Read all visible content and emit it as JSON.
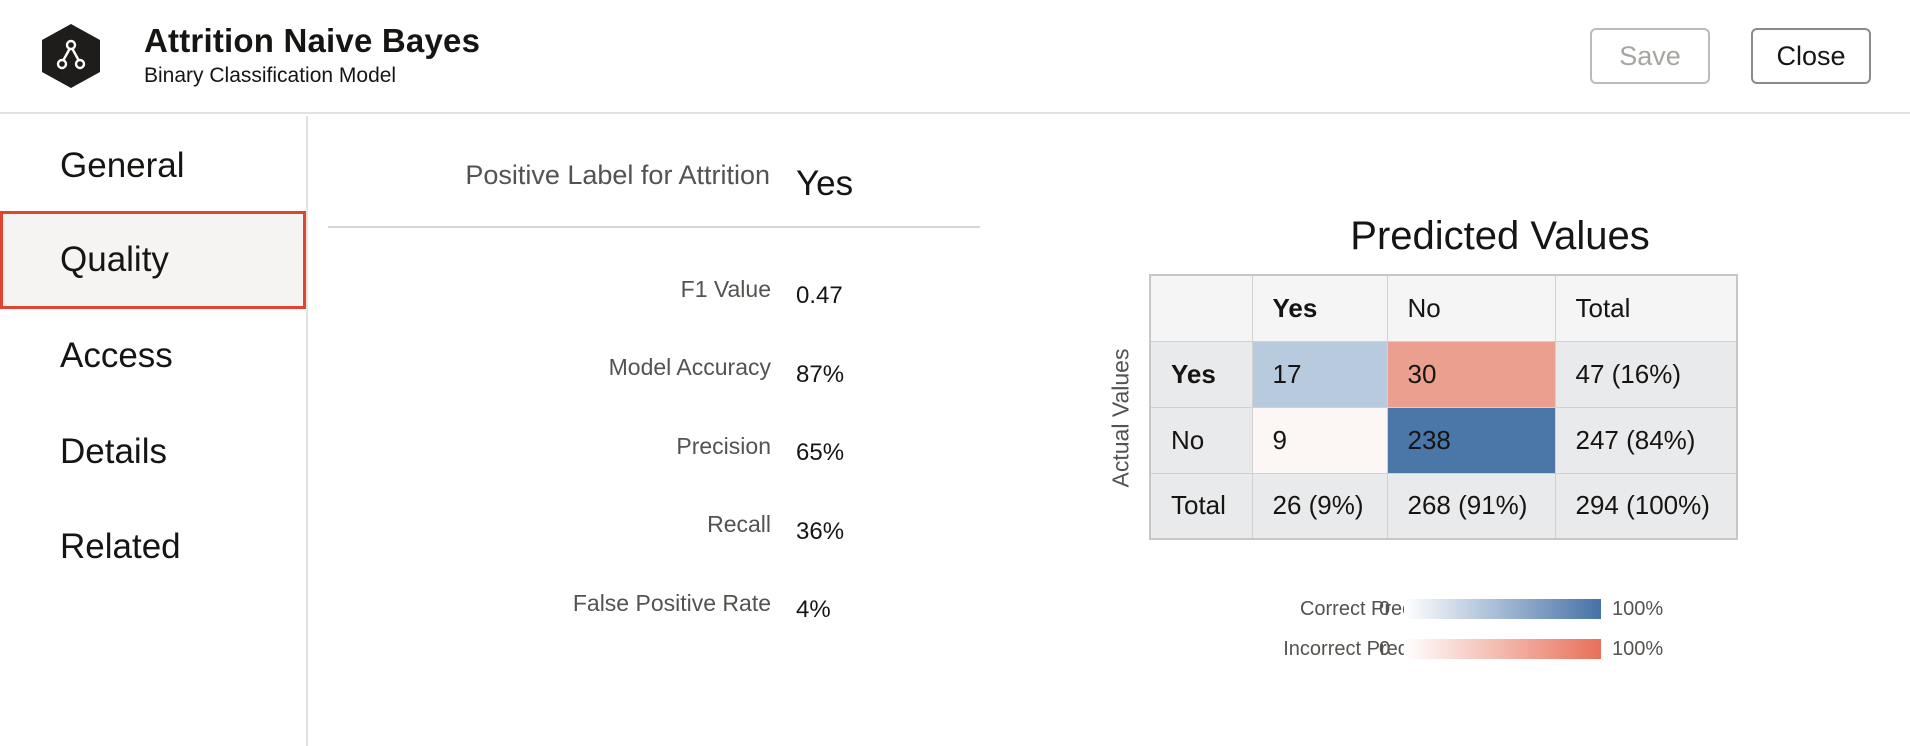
{
  "header": {
    "title": "Attrition Naive Bayes",
    "subtitle": "Binary Classification Model",
    "logo_icon": "model-hexagon-icon",
    "save_label": "Save",
    "close_label": "Close"
  },
  "sidebar": {
    "items": [
      {
        "label": "General",
        "active": false
      },
      {
        "label": "Quality",
        "active": true
      },
      {
        "label": "Access",
        "active": false
      },
      {
        "label": "Details",
        "active": false
      },
      {
        "label": "Related",
        "active": false
      }
    ]
  },
  "quality": {
    "positive_label_caption": "Positive Label for Attrition",
    "positive_label_value": "Yes",
    "metrics": [
      {
        "label": "F1 Value",
        "value": "0.47"
      },
      {
        "label": "Model Accuracy",
        "value": "87%"
      },
      {
        "label": "Precision",
        "value": "65%"
      },
      {
        "label": "Recall",
        "value": "36%"
      },
      {
        "label": "False Positive Rate",
        "value": "4%"
      }
    ]
  },
  "confusion_matrix": {
    "title": "Predicted Values",
    "row_axis_label": "Actual Values",
    "columns": [
      "Yes",
      "No",
      "Total"
    ],
    "rows": [
      {
        "label": "Yes",
        "cells": [
          "17",
          "30",
          "47 (16%)"
        ]
      },
      {
        "label": "No",
        "cells": [
          "9",
          "238",
          "247 (84%)"
        ]
      },
      {
        "label": "Total",
        "cells": [
          "26 (9%)",
          "268 (91%)",
          "294 (100%)"
        ]
      }
    ],
    "cell_colors": {
      "yes_yes": "#b8cade",
      "yes_no": "#eba08f",
      "no_yes": "#fcf7f5",
      "no_no": "#4a76a8"
    },
    "legend": {
      "correct_label": "Correct Prediction",
      "incorrect_label": "Incorrect Predicition",
      "min_label": "0",
      "max_label": "100%",
      "correct_color": "#4672a6",
      "incorrect_color": "#e8705a"
    }
  }
}
